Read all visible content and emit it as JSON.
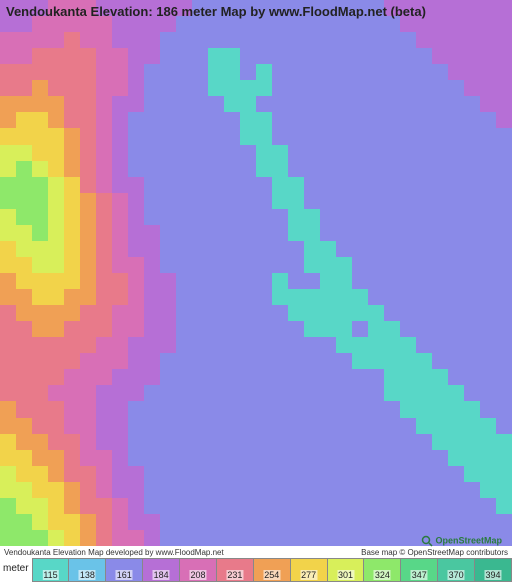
{
  "title": "Vendoukanta Elevation: 186 meter Map by www.FloodMap.net (beta)",
  "footer_left": "Vendoukanta Elevation Map developed by www.FloodMap.net",
  "footer_right": "Base map © OpenStreetMap contributors",
  "osm_brand": "OpenStreetMap",
  "map": {
    "type": "heatmap",
    "grid_cols": 32,
    "grid_rows": 34,
    "palette": {
      "0": "#58d7c7",
      "1": "#6ac3e8",
      "2": "#8a8ae8",
      "3": "#b66fd6",
      "4": "#d86fb6",
      "5": "#e87a8a",
      "6": "#f0a055",
      "7": "#f2d34a",
      "8": "#d8ef5a",
      "9": "#8ee86a",
      "10": "#58d788",
      "11": "#4ac7a0"
    },
    "cells": [
      [
        3,
        3,
        3,
        4,
        4,
        4,
        3,
        3,
        3,
        3,
        3,
        3,
        2,
        2,
        2,
        2,
        2,
        2,
        2,
        2,
        2,
        2,
        2,
        2,
        3,
        3,
        3,
        3,
        3,
        3,
        3,
        3
      ],
      [
        3,
        3,
        4,
        4,
        4,
        4,
        4,
        3,
        3,
        3,
        3,
        2,
        2,
        2,
        2,
        2,
        2,
        2,
        2,
        2,
        2,
        2,
        2,
        2,
        2,
        3,
        3,
        3,
        3,
        3,
        3,
        3
      ],
      [
        4,
        4,
        4,
        4,
        5,
        4,
        4,
        3,
        3,
        3,
        2,
        2,
        2,
        2,
        2,
        2,
        2,
        2,
        2,
        2,
        2,
        2,
        2,
        2,
        2,
        2,
        3,
        3,
        3,
        3,
        3,
        3
      ],
      [
        4,
        4,
        5,
        5,
        5,
        5,
        4,
        4,
        3,
        3,
        2,
        2,
        2,
        0,
        0,
        2,
        2,
        2,
        2,
        2,
        2,
        2,
        2,
        2,
        2,
        2,
        2,
        3,
        3,
        3,
        3,
        3
      ],
      [
        5,
        5,
        5,
        5,
        5,
        5,
        4,
        4,
        3,
        2,
        2,
        2,
        2,
        0,
        0,
        2,
        0,
        2,
        2,
        2,
        2,
        2,
        2,
        2,
        2,
        2,
        2,
        2,
        3,
        3,
        3,
        3
      ],
      [
        5,
        5,
        6,
        5,
        5,
        5,
        4,
        4,
        3,
        2,
        2,
        2,
        2,
        0,
        0,
        0,
        0,
        2,
        2,
        2,
        2,
        2,
        2,
        2,
        2,
        2,
        2,
        2,
        2,
        3,
        3,
        3
      ],
      [
        6,
        6,
        6,
        6,
        5,
        5,
        4,
        3,
        3,
        2,
        2,
        2,
        2,
        2,
        0,
        0,
        2,
        2,
        2,
        2,
        2,
        2,
        2,
        2,
        2,
        2,
        2,
        2,
        2,
        2,
        3,
        3
      ],
      [
        6,
        7,
        7,
        6,
        5,
        5,
        4,
        3,
        2,
        2,
        2,
        2,
        2,
        2,
        2,
        0,
        0,
        2,
        2,
        2,
        2,
        2,
        2,
        2,
        2,
        2,
        2,
        2,
        2,
        2,
        2,
        3
      ],
      [
        7,
        7,
        7,
        7,
        6,
        5,
        4,
        3,
        2,
        2,
        2,
        2,
        2,
        2,
        2,
        0,
        0,
        2,
        2,
        2,
        2,
        2,
        2,
        2,
        2,
        2,
        2,
        2,
        2,
        2,
        2,
        2
      ],
      [
        8,
        8,
        7,
        7,
        6,
        5,
        4,
        3,
        2,
        2,
        2,
        2,
        2,
        2,
        2,
        2,
        0,
        0,
        2,
        2,
        2,
        2,
        2,
        2,
        2,
        2,
        2,
        2,
        2,
        2,
        2,
        2
      ],
      [
        8,
        9,
        8,
        7,
        6,
        5,
        4,
        3,
        2,
        2,
        2,
        2,
        2,
        2,
        2,
        2,
        0,
        0,
        2,
        2,
        2,
        2,
        2,
        2,
        2,
        2,
        2,
        2,
        2,
        2,
        2,
        2
      ],
      [
        9,
        9,
        9,
        8,
        7,
        5,
        4,
        3,
        3,
        2,
        2,
        2,
        2,
        2,
        2,
        2,
        2,
        0,
        0,
        2,
        2,
        2,
        2,
        2,
        2,
        2,
        2,
        2,
        2,
        2,
        2,
        2
      ],
      [
        9,
        9,
        9,
        8,
        7,
        6,
        5,
        4,
        3,
        2,
        2,
        2,
        2,
        2,
        2,
        2,
        2,
        0,
        0,
        2,
        2,
        2,
        2,
        2,
        2,
        2,
        2,
        2,
        2,
        2,
        2,
        2
      ],
      [
        8,
        9,
        9,
        8,
        7,
        6,
        5,
        4,
        3,
        2,
        2,
        2,
        2,
        2,
        2,
        2,
        2,
        2,
        0,
        0,
        2,
        2,
        2,
        2,
        2,
        2,
        2,
        2,
        2,
        2,
        2,
        2
      ],
      [
        8,
        8,
        9,
        8,
        7,
        6,
        5,
        4,
        3,
        3,
        2,
        2,
        2,
        2,
        2,
        2,
        2,
        2,
        0,
        0,
        2,
        2,
        2,
        2,
        2,
        2,
        2,
        2,
        2,
        2,
        2,
        2
      ],
      [
        7,
        8,
        8,
        8,
        7,
        6,
        5,
        4,
        3,
        3,
        2,
        2,
        2,
        2,
        2,
        2,
        2,
        2,
        2,
        0,
        0,
        2,
        2,
        2,
        2,
        2,
        2,
        2,
        2,
        2,
        2,
        2
      ],
      [
        7,
        7,
        8,
        8,
        7,
        6,
        5,
        4,
        4,
        3,
        2,
        2,
        2,
        2,
        2,
        2,
        2,
        2,
        2,
        0,
        0,
        0,
        2,
        2,
        2,
        2,
        2,
        2,
        2,
        2,
        2,
        2
      ],
      [
        6,
        7,
        7,
        7,
        7,
        6,
        5,
        5,
        4,
        3,
        3,
        2,
        2,
        2,
        2,
        2,
        2,
        0,
        2,
        2,
        0,
        0,
        2,
        2,
        2,
        2,
        2,
        2,
        2,
        2,
        2,
        2
      ],
      [
        6,
        6,
        7,
        7,
        6,
        6,
        5,
        5,
        4,
        3,
        3,
        2,
        2,
        2,
        2,
        2,
        2,
        0,
        0,
        0,
        0,
        0,
        0,
        2,
        2,
        2,
        2,
        2,
        2,
        2,
        2,
        2
      ],
      [
        5,
        6,
        6,
        6,
        6,
        5,
        5,
        4,
        4,
        3,
        3,
        2,
        2,
        2,
        2,
        2,
        2,
        2,
        0,
        0,
        0,
        0,
        0,
        0,
        2,
        2,
        2,
        2,
        2,
        2,
        2,
        2
      ],
      [
        5,
        5,
        6,
        6,
        5,
        5,
        5,
        4,
        4,
        3,
        3,
        2,
        2,
        2,
        2,
        2,
        2,
        2,
        2,
        0,
        0,
        0,
        2,
        0,
        0,
        2,
        2,
        2,
        2,
        2,
        2,
        2
      ],
      [
        5,
        5,
        5,
        5,
        5,
        5,
        4,
        4,
        3,
        3,
        3,
        2,
        2,
        2,
        2,
        2,
        2,
        2,
        2,
        2,
        2,
        0,
        0,
        0,
        0,
        0,
        2,
        2,
        2,
        2,
        2,
        2
      ],
      [
        5,
        5,
        5,
        5,
        5,
        4,
        4,
        4,
        3,
        3,
        2,
        2,
        2,
        2,
        2,
        2,
        2,
        2,
        2,
        2,
        2,
        2,
        0,
        0,
        0,
        0,
        0,
        2,
        2,
        2,
        2,
        2
      ],
      [
        5,
        5,
        5,
        5,
        4,
        4,
        4,
        3,
        3,
        3,
        2,
        2,
        2,
        2,
        2,
        2,
        2,
        2,
        2,
        2,
        2,
        2,
        2,
        2,
        0,
        0,
        0,
        0,
        2,
        2,
        2,
        2
      ],
      [
        5,
        5,
        5,
        4,
        4,
        4,
        3,
        3,
        3,
        2,
        2,
        2,
        2,
        2,
        2,
        2,
        2,
        2,
        2,
        2,
        2,
        2,
        2,
        2,
        0,
        0,
        0,
        0,
        0,
        2,
        2,
        2
      ],
      [
        6,
        5,
        5,
        5,
        4,
        4,
        3,
        3,
        2,
        2,
        2,
        2,
        2,
        2,
        2,
        2,
        2,
        2,
        2,
        2,
        2,
        2,
        2,
        2,
        2,
        0,
        0,
        0,
        0,
        0,
        2,
        2
      ],
      [
        6,
        6,
        5,
        5,
        4,
        4,
        3,
        3,
        2,
        2,
        2,
        2,
        2,
        2,
        2,
        2,
        2,
        2,
        2,
        2,
        2,
        2,
        2,
        2,
        2,
        2,
        0,
        0,
        0,
        0,
        0,
        2
      ],
      [
        7,
        6,
        6,
        5,
        5,
        4,
        3,
        3,
        2,
        2,
        2,
        2,
        2,
        2,
        2,
        2,
        2,
        2,
        2,
        2,
        2,
        2,
        2,
        2,
        2,
        2,
        2,
        0,
        0,
        0,
        0,
        0
      ],
      [
        7,
        7,
        6,
        6,
        5,
        4,
        4,
        3,
        2,
        2,
        2,
        2,
        2,
        2,
        2,
        2,
        2,
        2,
        2,
        2,
        2,
        2,
        2,
        2,
        2,
        2,
        2,
        2,
        0,
        0,
        0,
        0
      ],
      [
        8,
        7,
        7,
        6,
        5,
        5,
        4,
        3,
        3,
        2,
        2,
        2,
        2,
        2,
        2,
        2,
        2,
        2,
        2,
        2,
        2,
        2,
        2,
        2,
        2,
        2,
        2,
        2,
        2,
        0,
        0,
        0
      ],
      [
        8,
        8,
        7,
        7,
        6,
        5,
        4,
        3,
        3,
        2,
        2,
        2,
        2,
        2,
        2,
        2,
        2,
        2,
        2,
        2,
        2,
        2,
        2,
        2,
        2,
        2,
        2,
        2,
        2,
        2,
        0,
        0
      ],
      [
        9,
        8,
        8,
        7,
        6,
        5,
        5,
        4,
        3,
        2,
        2,
        2,
        2,
        2,
        2,
        2,
        2,
        2,
        2,
        2,
        2,
        2,
        2,
        2,
        2,
        2,
        2,
        2,
        2,
        2,
        2,
        0
      ],
      [
        9,
        9,
        8,
        7,
        7,
        6,
        5,
        4,
        3,
        3,
        2,
        2,
        2,
        2,
        2,
        2,
        2,
        2,
        2,
        2,
        2,
        2,
        2,
        2,
        2,
        2,
        2,
        2,
        2,
        2,
        2,
        2
      ],
      [
        9,
        9,
        9,
        8,
        7,
        6,
        5,
        4,
        4,
        3,
        2,
        2,
        2,
        2,
        2,
        2,
        2,
        2,
        2,
        2,
        2,
        2,
        2,
        2,
        2,
        2,
        2,
        2,
        2,
        2,
        2,
        2
      ]
    ]
  },
  "legend": {
    "unit_label": "meter",
    "swatches": [
      {
        "color": "#58d7c7",
        "value": "115"
      },
      {
        "color": "#6ac3e8",
        "value": "138"
      },
      {
        "color": "#8a8ae8",
        "value": "161"
      },
      {
        "color": "#b66fd6",
        "value": "184"
      },
      {
        "color": "#d86fb6",
        "value": "208"
      },
      {
        "color": "#e87a8a",
        "value": "231"
      },
      {
        "color": "#f0a055",
        "value": "254"
      },
      {
        "color": "#f2d34a",
        "value": "277"
      },
      {
        "color": "#d8ef5a",
        "value": "301"
      },
      {
        "color": "#8ee86a",
        "value": "324"
      },
      {
        "color": "#58d788",
        "value": "347"
      },
      {
        "color": "#4ac7a0",
        "value": "370"
      },
      {
        "color": "#3ab890",
        "value": "394"
      }
    ]
  }
}
